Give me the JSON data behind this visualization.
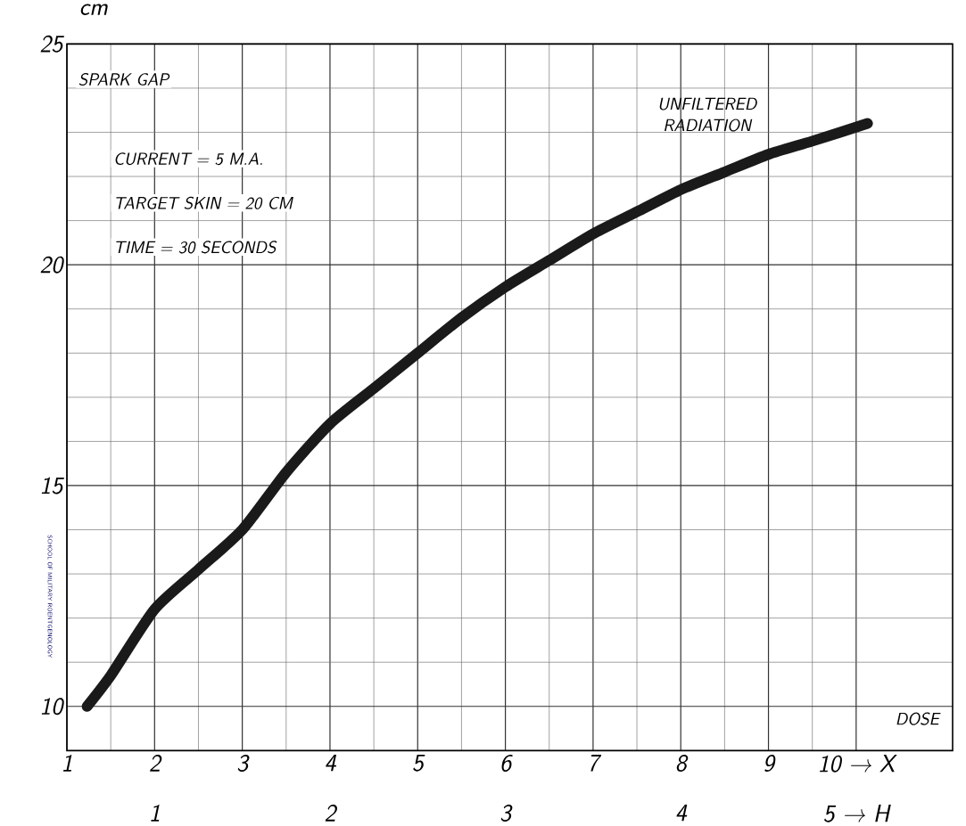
{
  "chart_data": {
    "type": "line",
    "xlabel": "DOSE",
    "ylabel": "cm",
    "x": [
      1.23,
      1.5,
      2,
      2.5,
      3,
      3.5,
      4,
      4.5,
      5,
      5.5,
      6,
      6.5,
      7,
      7.5,
      8,
      8.5,
      9,
      9.5,
      10.13
    ],
    "series": [
      {
        "color": "#1a1a1a",
        "values": [
          10,
          10.7,
          12.2,
          13.1,
          14.0,
          15.3,
          16.4,
          17.2,
          18.0,
          18.8,
          19.5,
          20.1,
          20.7,
          21.2,
          21.7,
          22.1,
          22.5,
          22.8,
          23.2
        ]
      }
    ],
    "xlim": [
      1,
      11.1
    ],
    "ylim": [
      9,
      25
    ],
    "xticks": [
      1,
      2,
      3,
      4,
      5,
      6,
      7,
      8,
      9,
      {
        "value": 10,
        "label": "10 → X"
      }
    ],
    "yticks": [
      10,
      15,
      20,
      25
    ],
    "x2lim": [
      0.5,
      5.55
    ],
    "x2ticks": [
      1,
      2,
      3,
      4,
      {
        "value": 5,
        "label": "5 → H"
      }
    ],
    "grid": true,
    "marker": "none",
    "line_style": "solid",
    "annotations": [
      "SPARK GAP",
      "UNFILTERED RADIATION",
      "CURRENT = 5 M.A.",
      "TARGET SKIN = 20 CM",
      "TIME = 30 SECONDS",
      "SCHOOL OF MILITARY ROENTGENOLOGY"
    ]
  }
}
